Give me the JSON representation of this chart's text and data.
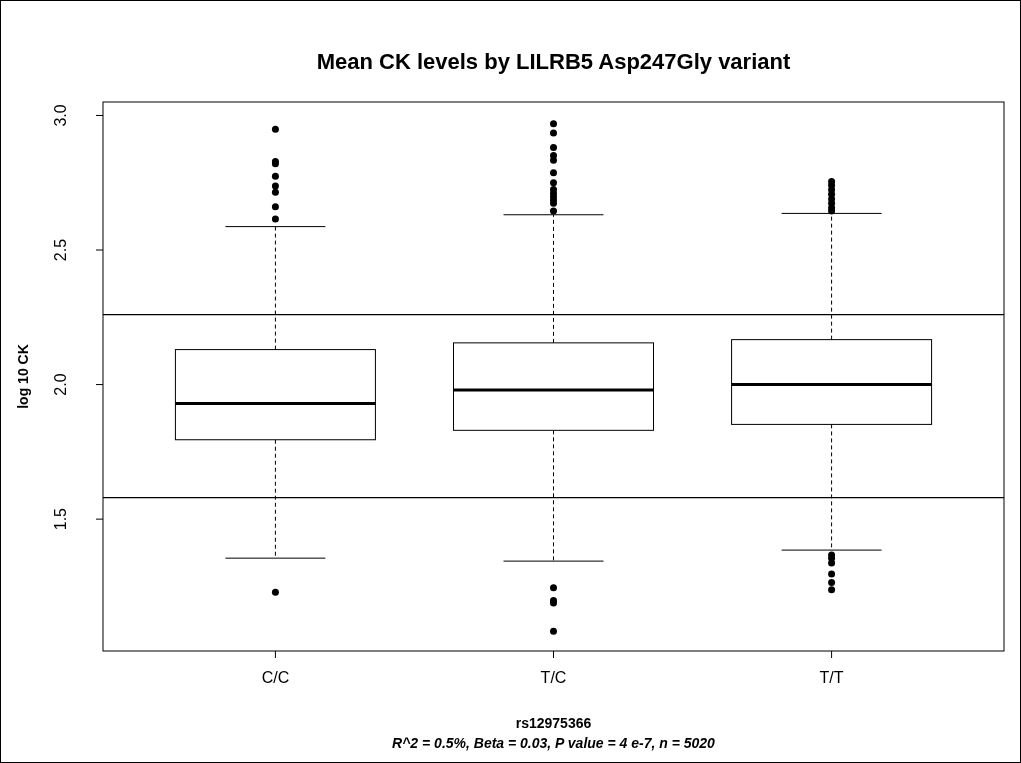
{
  "chart_data": {
    "type": "box",
    "title": "Mean CK levels by LILRB5 Asp247Gly variant",
    "xlabel": "rs12975366",
    "ylabel": "log 10 CK",
    "annotations": [
      "R^2 = 0.5%, Beta = 0.03, P value = 4 e-7, n = 5020"
    ],
    "categories": [
      "C/C",
      "T/C",
      "T/T"
    ],
    "boxes": [
      {
        "low": 1.355,
        "q1": 1.795,
        "median": 1.93,
        "q3": 2.13,
        "high": 2.587,
        "outliers": [
          2.949,
          2.829,
          2.821,
          2.774,
          2.738,
          2.715,
          2.661,
          2.615,
          1.228
        ]
      },
      {
        "low": 1.344,
        "q1": 1.83,
        "median": 1.98,
        "q3": 2.155,
        "high": 2.631,
        "outliers": [
          2.969,
          2.935,
          2.881,
          2.851,
          2.834,
          2.787,
          2.75,
          2.725,
          2.711,
          2.699,
          2.686,
          2.674,
          2.645,
          1.245,
          1.198,
          1.188,
          1.083
        ]
      },
      {
        "low": 1.385,
        "q1": 1.852,
        "median": 2.0,
        "q3": 2.167,
        "high": 2.636,
        "outliers": [
          2.755,
          2.741,
          2.724,
          2.707,
          2.69,
          2.674,
          2.657,
          2.645,
          1.367,
          1.355,
          1.337,
          1.296,
          1.265,
          1.238
        ]
      }
    ],
    "color": "#000000",
    "ylim": [
      1.01,
      3.05
    ],
    "yticks": [
      1.5,
      {
        "value": 2,
        "label": "2.0"
      },
      2.5,
      {
        "value": 3,
        "label": "3.0"
      }
    ],
    "ref_lines": [
      {
        "axis": "y",
        "value": 2.26,
        "color": "#000000"
      },
      {
        "axis": "y",
        "value": 1.58,
        "color": "#000000"
      }
    ],
    "grid": false
  }
}
